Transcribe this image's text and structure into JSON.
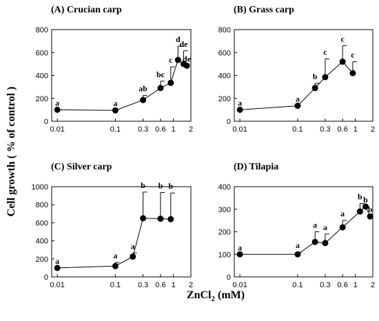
{
  "figure": {
    "ylabel": "Cell growth  ( % of control )",
    "xlabel_main": "ZnCl",
    "xlabel_sub": "2",
    "xlabel_unit": " (mM)"
  },
  "chart_data": [
    {
      "type": "line",
      "title": "(A) Crucian carp",
      "xscale": "log",
      "xticks": [
        0.01,
        0.1,
        0.3,
        0.6,
        1,
        2
      ],
      "xtick_labels": [
        "0.01",
        "0.1",
        "0.3",
        "0.6",
        "1",
        "2"
      ],
      "ylim": [
        0,
        800
      ],
      "yticks": [
        0,
        200,
        400,
        600,
        800
      ],
      "x": [
        0.01,
        0.1,
        0.3,
        0.6,
        0.9,
        1.2,
        1.5,
        1.7
      ],
      "y": [
        100,
        95,
        185,
        290,
        335,
        535,
        500,
        485
      ],
      "error": [
        0,
        0,
        40,
        60,
        140,
        120,
        115,
        0
      ],
      "labels": [
        "a",
        "a",
        "ab",
        "bc",
        "c",
        "d",
        "de",
        "de"
      ]
    },
    {
      "type": "line",
      "title": "(B) Grass carp",
      "xscale": "log",
      "xticks": [
        0.01,
        0.1,
        0.3,
        0.6,
        1,
        2
      ],
      "xtick_labels": [
        "0.01",
        "0.1",
        "0.3",
        "0.6",
        "1",
        "2"
      ],
      "ylim": [
        0,
        800
      ],
      "yticks": [
        0,
        200,
        400,
        600,
        800
      ],
      "x": [
        0.01,
        0.1,
        0.2,
        0.3,
        0.6,
        0.9
      ],
      "y": [
        100,
        135,
        290,
        385,
        520,
        420
      ],
      "error": [
        0,
        0,
        40,
        160,
        140,
        100
      ],
      "labels": [
        "a",
        "a",
        "b",
        "c",
        "c",
        "c"
      ]
    },
    {
      "type": "line",
      "title": "(C) Silver carp",
      "xscale": "log",
      "xticks": [
        0.01,
        0.1,
        0.3,
        0.6,
        1,
        2
      ],
      "xtick_labels": [
        "0.01",
        "0.1",
        "0.3",
        "0.6",
        "1",
        "2"
      ],
      "ylim": [
        0,
        1000
      ],
      "yticks": [
        0,
        200,
        400,
        600,
        800,
        1000
      ],
      "x": [
        0.01,
        0.1,
        0.2,
        0.3,
        0.6,
        0.9
      ],
      "y": [
        100,
        120,
        225,
        650,
        645,
        640
      ],
      "error": [
        0,
        40,
        40,
        290,
        290,
        290
      ],
      "labels": [
        "a",
        "a",
        "a",
        "b",
        "b",
        "b"
      ]
    },
    {
      "type": "line",
      "title": "(D) Tilapia",
      "xscale": "log",
      "xticks": [
        0.01,
        0.1,
        0.3,
        0.6,
        1,
        2
      ],
      "xtick_labels": [
        "0.01",
        "0.1",
        "0.3",
        "0.6",
        "1",
        "2"
      ],
      "ylim": [
        0,
        400
      ],
      "yticks": [
        0,
        100,
        200,
        300,
        400
      ],
      "x": [
        0.01,
        0.1,
        0.2,
        0.3,
        0.6,
        1.2,
        1.5,
        1.8
      ],
      "y": [
        100,
        100,
        155,
        150,
        220,
        290,
        312,
        268
      ],
      "error": [
        0,
        10,
        45,
        40,
        30,
        35,
        0,
        0
      ],
      "labels": [
        "a",
        "a",
        "a",
        "a",
        "a",
        "b",
        "b",
        "b"
      ]
    }
  ]
}
